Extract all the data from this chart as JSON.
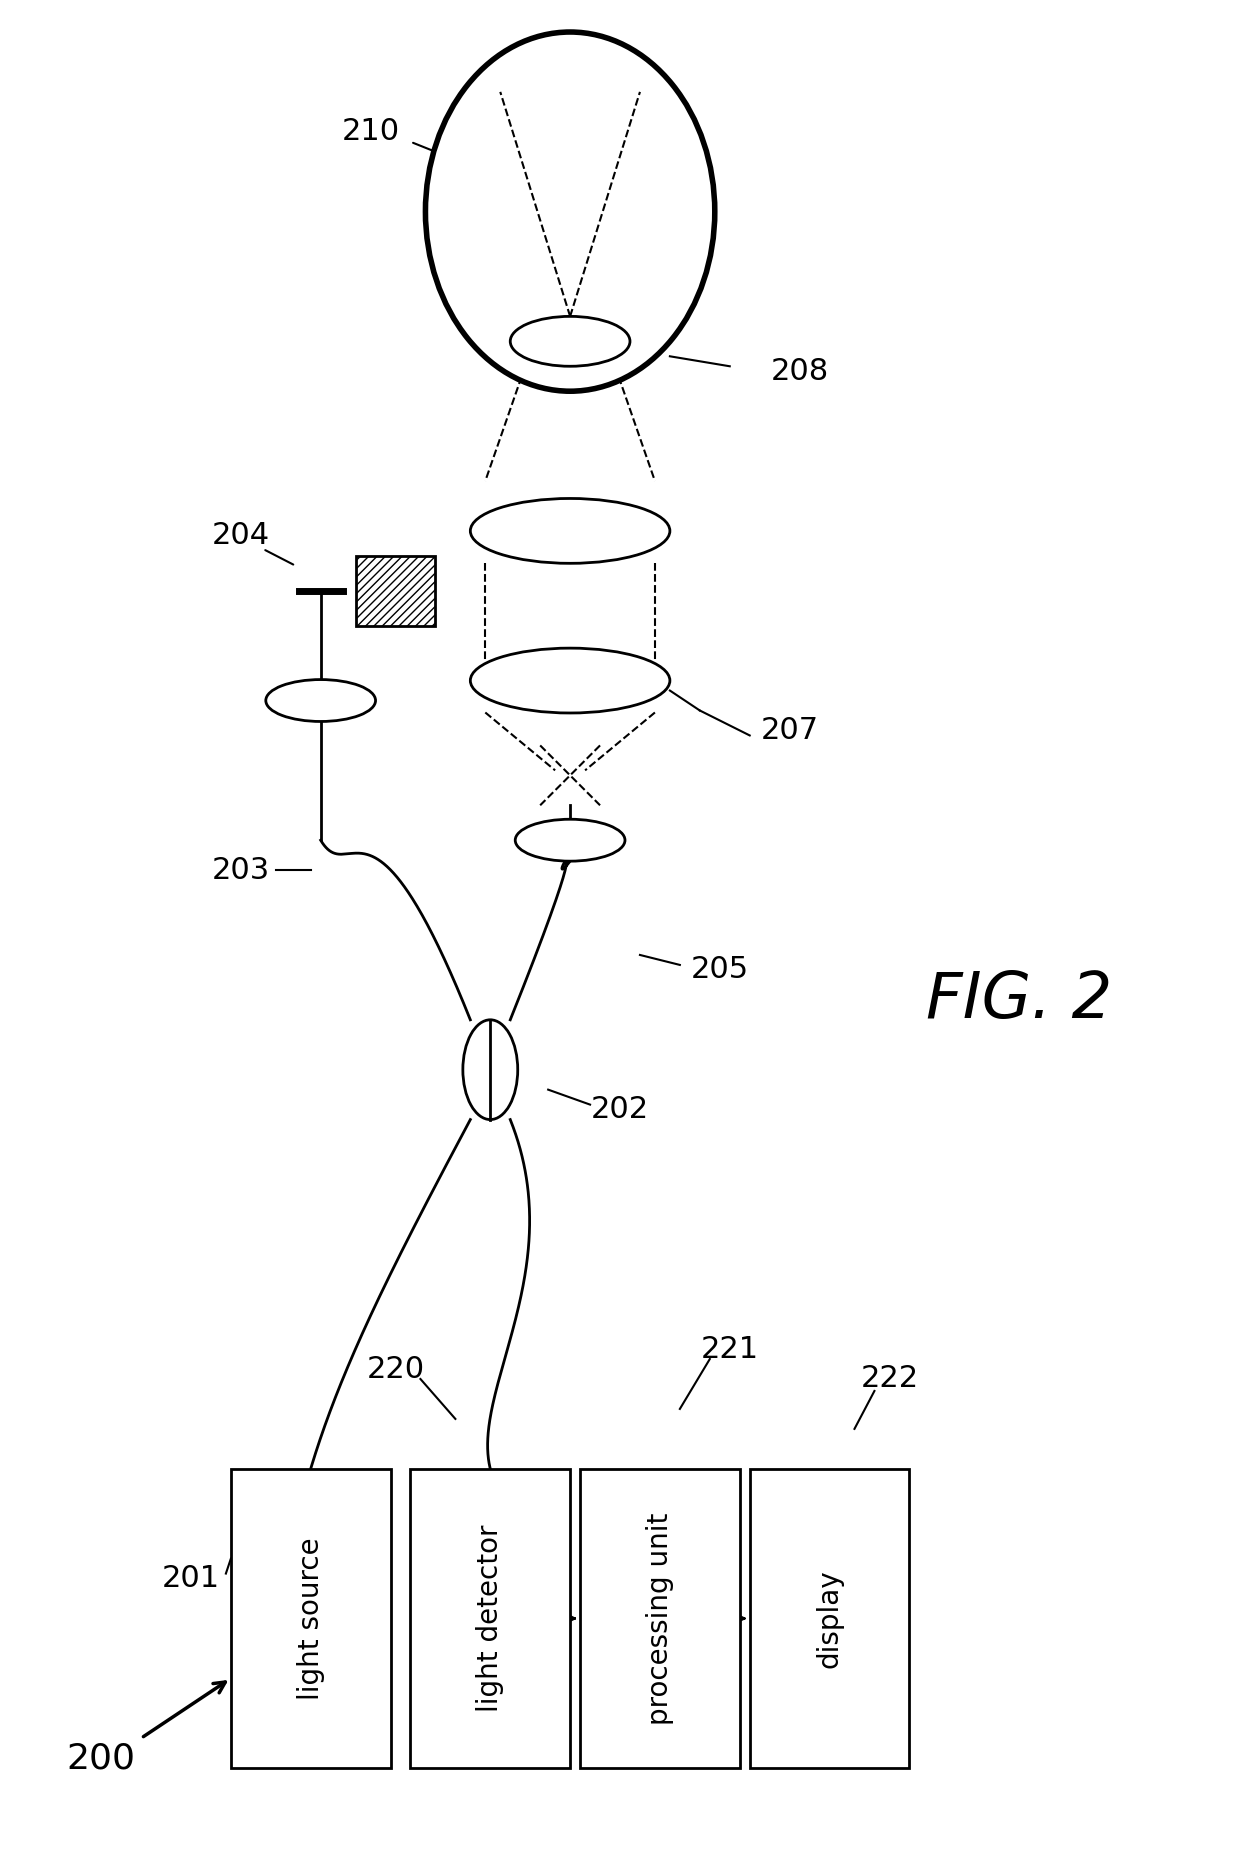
{
  "fig_label": "FIG. 2",
  "diagram_label": "200",
  "bg_color": "#ffffff",
  "box_labels": [
    "light source",
    "light detector",
    "processing unit",
    "display"
  ],
  "box_ids": [
    "201",
    "220",
    "221",
    "222"
  ],
  "figsize": [
    12.4,
    18.63
  ],
  "dpi": 100
}
